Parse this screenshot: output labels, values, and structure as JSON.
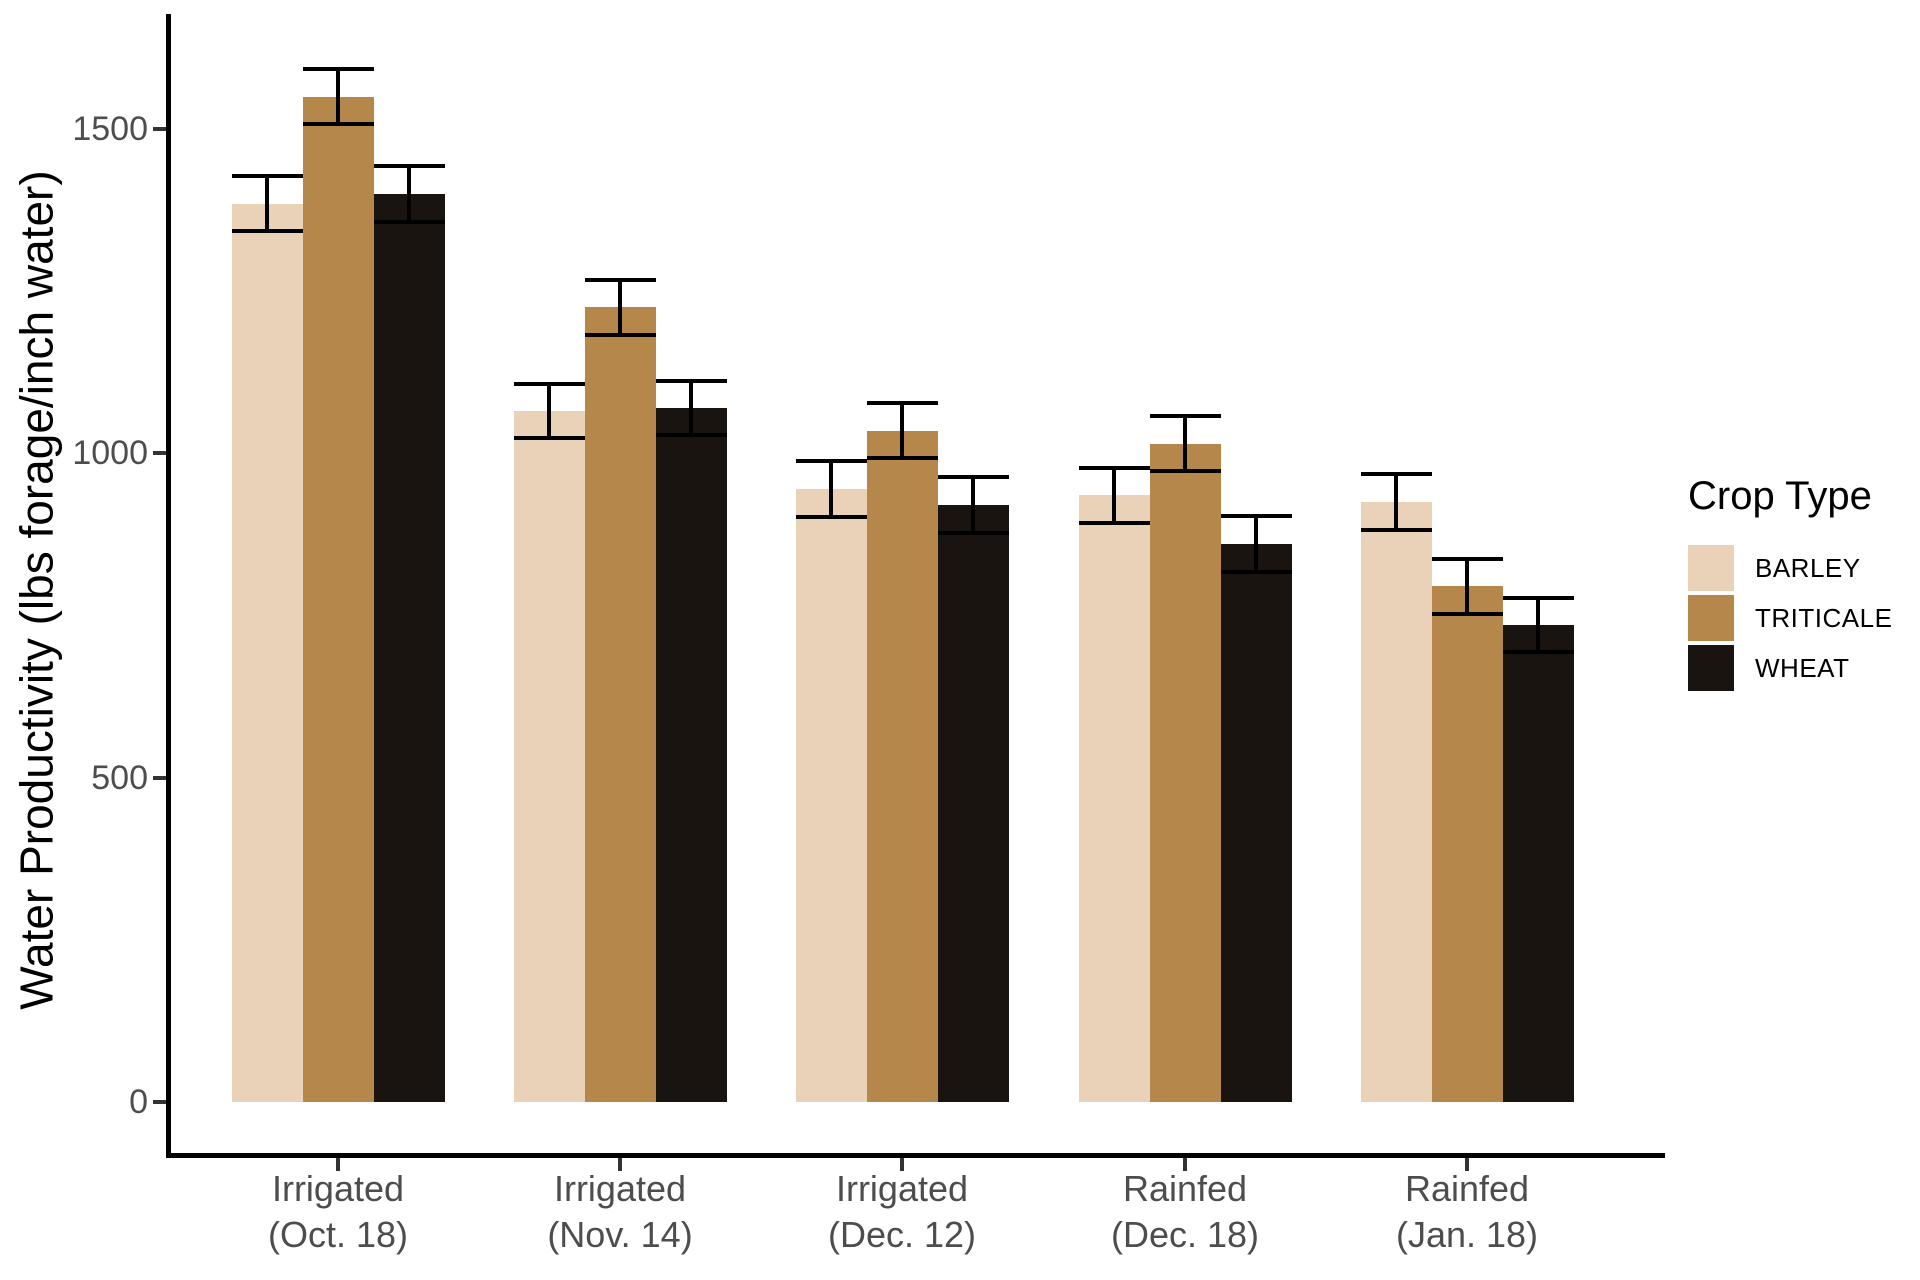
{
  "y_axis": {
    "title": "Water Productivity (lbs forage/inch water)",
    "tick_values": [
      0,
      500,
      1000,
      1500
    ],
    "tick_labels": [
      "0",
      "500",
      "1000",
      "1500"
    ]
  },
  "legend": {
    "title": "Crop Type",
    "position": "right"
  },
  "colors": {
    "barley": "#e9d2b8",
    "triticale": "#b6874a",
    "wheat": "#1a1411",
    "axis_text_gray": "#4d4d4d",
    "axis_line_black": "#000000"
  },
  "chart_data": {
    "type": "bar",
    "title": "",
    "xlabel": "",
    "ylabel": "Water Productivity (lbs forage/inch water)",
    "ylim": [
      0,
      1700
    ],
    "grid": "off",
    "legend_position": "right",
    "error_bars": true,
    "categories": [
      "Irrigated (Oct. 18)",
      "Irrigated (Nov. 14)",
      "Irrigated (Dec. 12)",
      "Rainfed (Dec. 18)",
      "Rainfed (Jan. 18)"
    ],
    "series": [
      {
        "name": "BARLEY",
        "color": "#e9d2b8",
        "values": [
          1385,
          1065,
          945,
          935,
          925
        ],
        "errors": [
          43,
          42,
          43,
          43,
          43
        ]
      },
      {
        "name": "TRITICALE",
        "color": "#b6874a",
        "values": [
          1550,
          1225,
          1035,
          1015,
          795
        ],
        "errors": [
          42,
          42,
          42,
          43,
          42
        ]
      },
      {
        "name": "WHEAT",
        "color": "#1a1411",
        "values": [
          1400,
          1070,
          920,
          860,
          735
        ],
        "errors": [
          43,
          42,
          43,
          43,
          42
        ]
      }
    ]
  }
}
